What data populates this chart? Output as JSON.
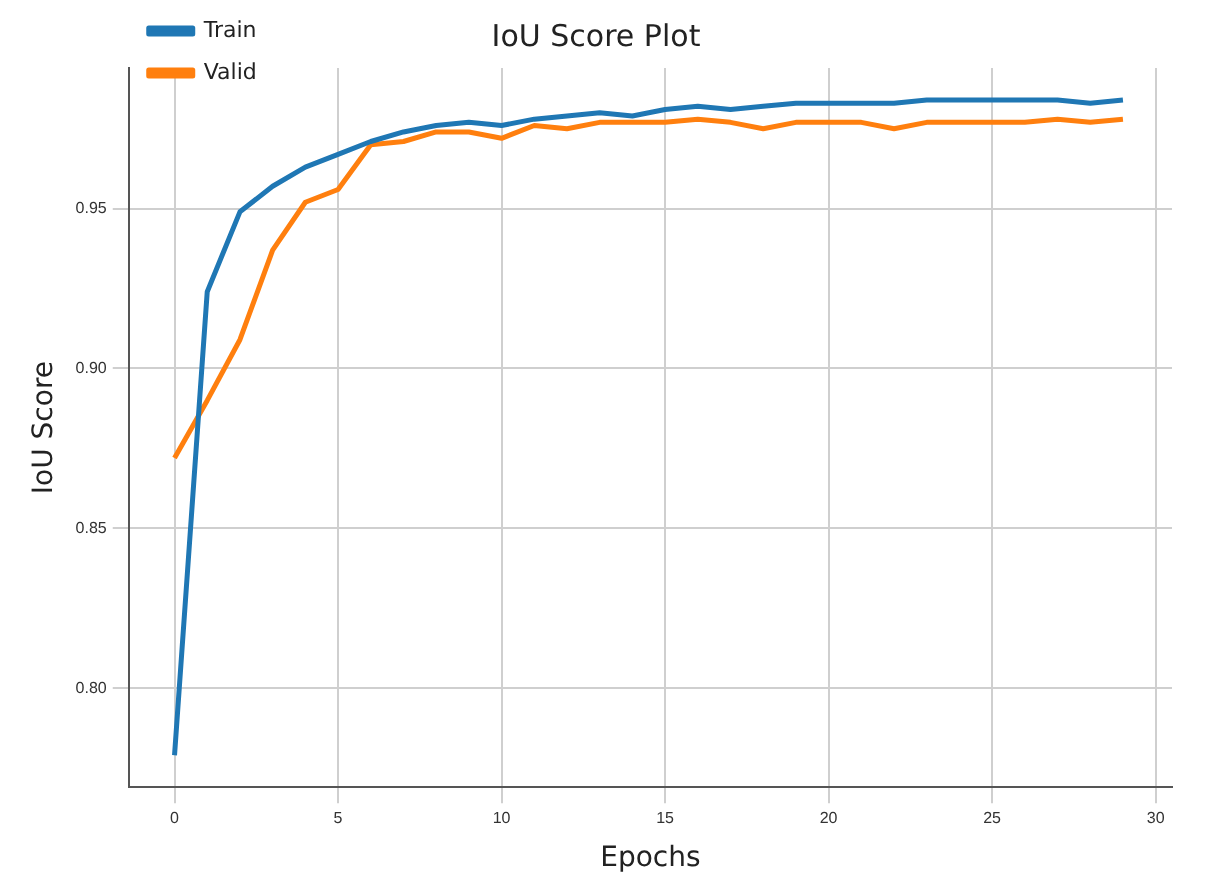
{
  "chart_data": {
    "type": "line",
    "title": "IoU Score Plot",
    "xlabel": "Epochs",
    "ylabel": "IoU Score",
    "x": [
      0,
      1,
      2,
      3,
      4,
      5,
      6,
      7,
      8,
      9,
      10,
      11,
      12,
      13,
      14,
      15,
      16,
      17,
      18,
      19,
      20,
      21,
      22,
      23,
      24,
      25,
      26,
      27,
      28,
      29
    ],
    "series": [
      {
        "name": "Train",
        "color": "#1f77b4",
        "values": [
          0.779,
          0.924,
          0.949,
          0.957,
          0.963,
          0.967,
          0.971,
          0.974,
          0.976,
          0.977,
          0.976,
          0.978,
          0.979,
          0.98,
          0.979,
          0.981,
          0.982,
          0.981,
          0.982,
          0.983,
          0.983,
          0.983,
          0.983,
          0.984,
          0.984,
          0.984,
          0.984,
          0.984,
          0.983,
          0.984
        ]
      },
      {
        "name": "Valid",
        "color": "#ff7f0e",
        "values": [
          0.872,
          0.89,
          0.909,
          0.937,
          0.952,
          0.956,
          0.97,
          0.971,
          0.974,
          0.974,
          0.972,
          0.976,
          0.975,
          0.977,
          0.977,
          0.977,
          0.978,
          0.977,
          0.975,
          0.977,
          0.977,
          0.977,
          0.975,
          0.977,
          0.977,
          0.977,
          0.977,
          0.978,
          0.977,
          0.978
        ]
      }
    ],
    "xlim": [
      -1.4,
      30.5
    ],
    "xticks": [
      0,
      5,
      10,
      15,
      20,
      25,
      30
    ],
    "ylim": [
      0.769,
      0.994
    ],
    "yticks": [
      {
        "value": 0.8,
        "label": "0.80"
      },
      {
        "value": 0.85,
        "label": "0.85"
      },
      {
        "value": 0.9,
        "label": "0.90"
      },
      {
        "value": 0.95,
        "label": "0.95"
      }
    ],
    "grid": true,
    "legend": "top left",
    "line_style": "solid",
    "marker": "none"
  }
}
